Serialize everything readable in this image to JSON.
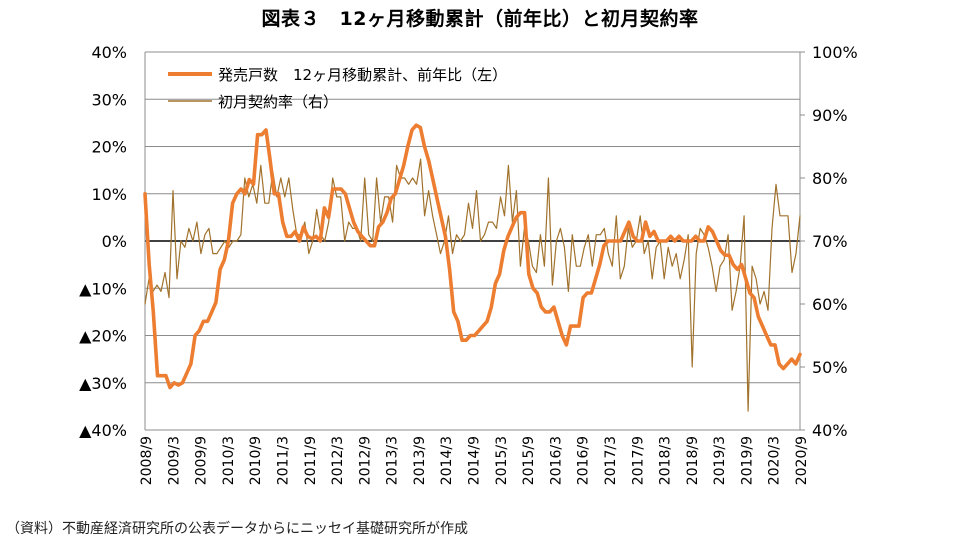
{
  "title": "図表３　12ヶ月移動累計（前年比）と初月契約率",
  "source": "（資料）不動産経済研究所の公表データからにニッセイ基礎研究所が作成",
  "colors": {
    "sales": "#ED7D31",
    "contract": "#A0722C",
    "grid": "#8C8C8C",
    "zero": "#000000"
  },
  "chart_data": {
    "type": "line",
    "title": "図表３　12ヶ月移動累計（前年比）と初月契約率",
    "x_labels": [
      "2008/9",
      "2009/3",
      "2009/9",
      "2010/3",
      "2010/9",
      "2011/3",
      "2011/9",
      "2012/3",
      "2012/9",
      "2013/3",
      "2013/9",
      "2014/3",
      "2014/9",
      "2015/3",
      "2015/9",
      "2016/3",
      "2016/9",
      "2017/3",
      "2017/9",
      "2018/3",
      "2018/9",
      "2019/3",
      "2019/9",
      "2020/3",
      "2020/9"
    ],
    "left_axis": {
      "ylim": [
        -40,
        40
      ],
      "ticks": [
        "40%",
        "30%",
        "20%",
        "10%",
        "0%",
        "▲10%",
        "▲20%",
        "▲30%",
        "▲40%"
      ]
    },
    "right_axis": {
      "ylim": [
        40,
        100
      ],
      "ticks": [
        "100%",
        "90%",
        "80%",
        "70%",
        "60%",
        "50%",
        "40%"
      ]
    },
    "legend": [
      "発売戸数　12ヶ月移動累計、前年比（左）",
      "初月契約率（右）"
    ],
    "series": [
      {
        "name": "発売戸数　12ヶ月移動累計、前年比（左）",
        "axis": "left",
        "values": [
          10,
          -5,
          -15,
          -28.5,
          -28.5,
          -28.5,
          -31,
          -30,
          -30.5,
          -30,
          -28,
          -26,
          -20,
          -19,
          -17,
          -17,
          -15,
          -13,
          -6,
          -4,
          0,
          8,
          10,
          11,
          10,
          13,
          12,
          22.5,
          22.5,
          23.5,
          17,
          10,
          10,
          4,
          1,
          1,
          2,
          0,
          3,
          1,
          0.5,
          1,
          0,
          7,
          5,
          11,
          11,
          11,
          10,
          7,
          4,
          2,
          1,
          0,
          -1,
          -1,
          3,
          4,
          6,
          9,
          10,
          13,
          16,
          20,
          23.5,
          24.5,
          24,
          20,
          17,
          13,
          9,
          5,
          1,
          -6,
          -15,
          -17,
          -21,
          -21,
          -20,
          -20,
          -19,
          -18,
          -17,
          -14,
          -9,
          -7,
          -2,
          1,
          3,
          5,
          6,
          6,
          -7,
          -10,
          -11,
          -14,
          -15,
          -15,
          -14,
          -17,
          -20,
          -22,
          -18,
          -18,
          -18,
          -12,
          -11,
          -11,
          -8,
          -5,
          -1,
          0,
          0,
          0,
          0,
          2,
          4,
          1,
          0,
          0,
          4,
          1,
          2,
          0,
          0,
          0,
          1,
          0,
          1,
          0,
          0,
          0,
          1,
          0,
          0,
          3,
          2,
          0,
          -2,
          -3,
          -3,
          -5,
          -6,
          -5,
          -8,
          -11,
          -12,
          -16,
          -18,
          -20,
          -22,
          -22,
          -26,
          -27,
          -26,
          -25,
          -26,
          -24
        ]
      },
      {
        "name": "初月契約率（右）",
        "axis": "right",
        "values": [
          60,
          64,
          62,
          63,
          62,
          65,
          61,
          78,
          64,
          70,
          69,
          72,
          70,
          73,
          68,
          71,
          72,
          68,
          68,
          69,
          70,
          69,
          70,
          70,
          71,
          80,
          77,
          79,
          76,
          82,
          76,
          76,
          81,
          77,
          80,
          77,
          80,
          75,
          71,
          71,
          73,
          68,
          70,
          75,
          71,
          70,
          73,
          80,
          77,
          77,
          70,
          73,
          72,
          72,
          70,
          80,
          71,
          70,
          80,
          73,
          77,
          77,
          73,
          82,
          80,
          80,
          79,
          80,
          79,
          83,
          74,
          78,
          74,
          71,
          68,
          70,
          74,
          68,
          71,
          70,
          71,
          76,
          72,
          78,
          70,
          71,
          73,
          73,
          72,
          77,
          74,
          82,
          73,
          78,
          66,
          72,
          70,
          66,
          65,
          71,
          66,
          80,
          63,
          70,
          72,
          69,
          62,
          71,
          66,
          66,
          69,
          71,
          66,
          71,
          71,
          72,
          68,
          66,
          74,
          64,
          66,
          72,
          69,
          70,
          74,
          68,
          70,
          64,
          69,
          70,
          64,
          69,
          66,
          68,
          64,
          67,
          71,
          50,
          68,
          72,
          71,
          69,
          66,
          62,
          66,
          67,
          71,
          59,
          62,
          66,
          74,
          43,
          66,
          64,
          60,
          62,
          59,
          72,
          79,
          74,
          74,
          74,
          65,
          68,
          74
        ]
      }
    ]
  }
}
